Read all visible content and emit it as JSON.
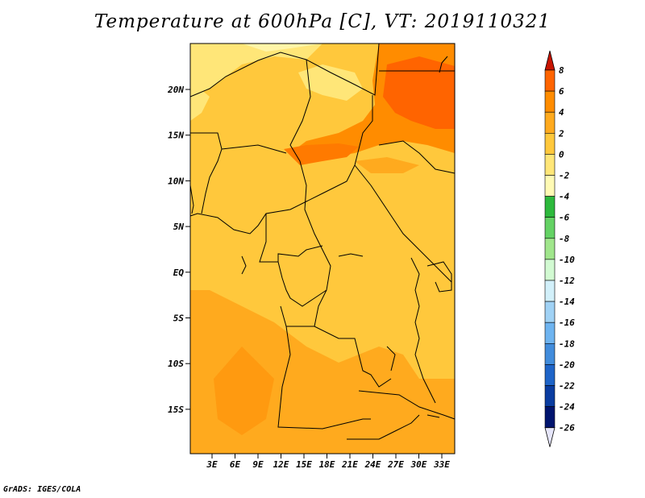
{
  "title": "Temperature at 600hPa [C], VT: 2019110321",
  "credit": "GrADS: IGES/COLA",
  "lat_labels": [
    "20N",
    "15N",
    "10N",
    "5N",
    "EQ",
    "5S",
    "10S",
    "15S"
  ],
  "lon_labels": [
    "3E",
    "6E",
    "9E",
    "12E",
    "15E",
    "18E",
    "21E",
    "24E",
    "27E",
    "30E",
    "33E"
  ],
  "colorbar": {
    "labels": [
      "8",
      "6",
      "4",
      "2",
      "0",
      "-2",
      "-4",
      "-6",
      "-8",
      "-10",
      "-12",
      "-14",
      "-16",
      "-18",
      "-20",
      "-22",
      "-24",
      "-26"
    ],
    "colors": [
      "#e83200",
      "#ff6400",
      "#ff8c00",
      "#ffaa1e",
      "#ffc83c",
      "#ffe678",
      "#fffab4",
      "#2db93c",
      "#64d264",
      "#a0e68c",
      "#d2fad2",
      "#d2f0fa",
      "#a0d2f5",
      "#6eb4f0",
      "#418cdc",
      "#1e64c8",
      "#0a3ca0",
      "#00146e",
      "#000064"
    ],
    "top_arrow_color": "#c81400",
    "bottom_arrow_color": "#e6e6fa"
  }
}
